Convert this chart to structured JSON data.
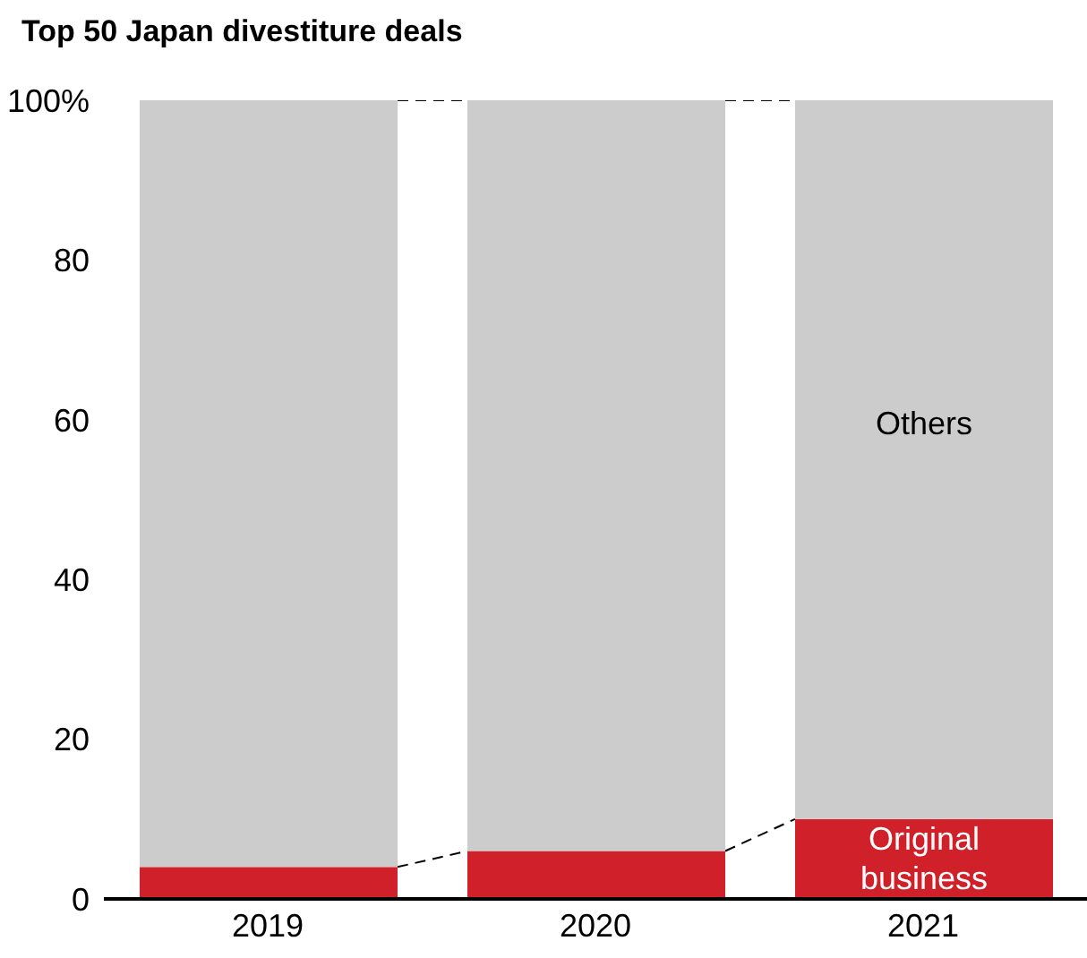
{
  "chart_data": {
    "type": "bar",
    "title": "Top 50 Japan divestiture deals",
    "categories": [
      "2019",
      "2020",
      "2021"
    ],
    "stacked": true,
    "series": [
      {
        "name": "Original business",
        "color": "#d0202a",
        "values": [
          4,
          6,
          10
        ]
      },
      {
        "name": "Others",
        "color": "#cccccc",
        "values": [
          96,
          94,
          90
        ]
      }
    ],
    "ylim": [
      0,
      100
    ],
    "yticks": [
      0,
      20,
      40,
      60,
      80,
      {
        "value": 100,
        "label": "100%"
      }
    ],
    "grid": false,
    "legend": false
  }
}
